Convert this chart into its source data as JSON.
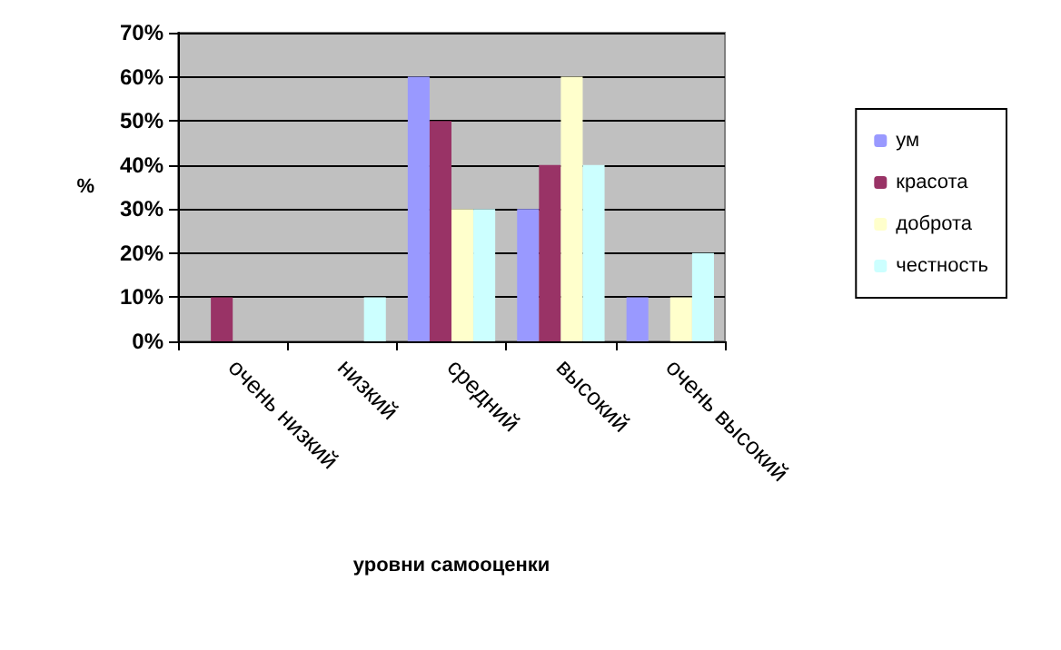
{
  "chart_data": {
    "type": "bar",
    "xlabel": "уровни самооценки",
    "ylabel": "%",
    "categories": [
      "очень низкий",
      "низкий",
      "средний",
      "высокий",
      "очень высокий"
    ],
    "series": [
      {
        "name": "ум",
        "color": "#9999ff",
        "values": [
          0,
          0,
          60,
          30,
          10
        ]
      },
      {
        "name": "красота",
        "color": "#993366",
        "values": [
          10,
          0,
          50,
          40,
          0
        ]
      },
      {
        "name": "доброта",
        "color": "#ffffcc",
        "values": [
          0,
          0,
          30,
          60,
          10
        ]
      },
      {
        "name": "честность",
        "color": "#ccffff",
        "values": [
          0,
          10,
          30,
          40,
          20
        ]
      }
    ],
    "ylim": [
      0,
      70
    ],
    "yticks": [
      {
        "value": 0,
        "label": "0%"
      },
      {
        "value": 10,
        "label": "10%"
      },
      {
        "value": 20,
        "label": "20%"
      },
      {
        "value": 30,
        "label": "30%"
      },
      {
        "value": 40,
        "label": "40%"
      },
      {
        "value": 50,
        "label": "50%"
      },
      {
        "value": 60,
        "label": "60%"
      },
      {
        "value": 70,
        "label": "70%"
      }
    ],
    "grid": "y",
    "legend": "right"
  }
}
